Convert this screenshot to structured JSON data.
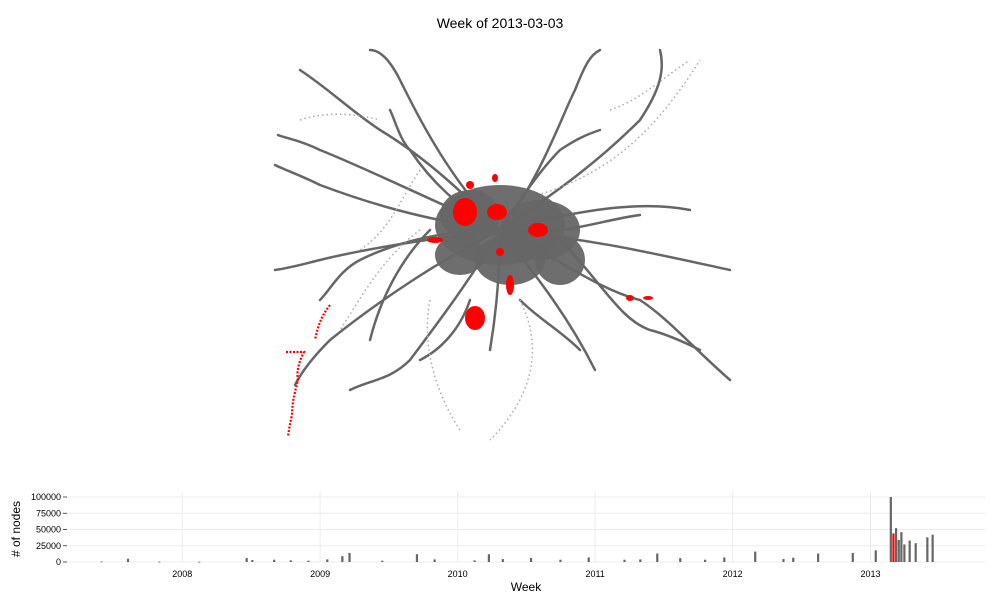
{
  "chart_data": [
    {
      "type": "scatter",
      "title": "Week of 2013-03-03",
      "description_series": [
        {
          "name": "",
          "color": "#666666"
        },
        {
          "name": "",
          "color": "#ff0000"
        }
      ]
    },
    {
      "type": "bar",
      "xlabel": "Week",
      "ylabel": "# of nodes",
      "x_tick_labels": [
        "2008",
        "2009",
        "2010",
        "2011",
        "2012",
        "2013"
      ],
      "y_tick_labels": [
        "0",
        "25000",
        "50000",
        "75000",
        "100000"
      ],
      "ylim": [
        0,
        100000
      ],
      "xlim": [
        "2007-03",
        "2013-11"
      ],
      "bar_color": "#666666",
      "highlight_color": "#ff0000",
      "highlight_week": "2013-03-03",
      "weeks": [
        [
          "2007-06-01",
          800
        ],
        [
          "2007-08-10",
          5000
        ],
        [
          "2007-11-01",
          600
        ],
        [
          "2008-02-15",
          400
        ],
        [
          "2008-06-20",
          6000
        ],
        [
          "2008-07-05",
          3000
        ],
        [
          "2008-09-01",
          3500
        ],
        [
          "2008-10-15",
          2500
        ],
        [
          "2008-12-01",
          2000
        ],
        [
          "2009-01-20",
          4000
        ],
        [
          "2009-03-01",
          9000
        ],
        [
          "2009-03-20",
          14000
        ],
        [
          "2009-06-15",
          2000
        ],
        [
          "2009-09-15",
          12000
        ],
        [
          "2009-11-01",
          4000
        ],
        [
          "2010-02-15",
          2500
        ],
        [
          "2010-03-25",
          12000
        ],
        [
          "2010-05-01",
          4500
        ],
        [
          "2010-07-15",
          6000
        ],
        [
          "2010-10-01",
          3500
        ],
        [
          "2010-12-15",
          7000
        ],
        [
          "2011-03-20",
          3500
        ],
        [
          "2011-05-01",
          4000
        ],
        [
          "2011-06-15",
          13000
        ],
        [
          "2011-08-15",
          6000
        ],
        [
          "2011-10-20",
          3500
        ],
        [
          "2011-12-10",
          7000
        ],
        [
          "2012-03-01",
          16000
        ],
        [
          "2012-05-15",
          4500
        ],
        [
          "2012-06-10",
          6500
        ],
        [
          "2012-08-15",
          13000
        ],
        [
          "2012-11-15",
          14000
        ],
        [
          "2013-01-15",
          18000
        ],
        [
          "2013-02-24",
          100000
        ],
        [
          "2013-03-03",
          44000
        ],
        [
          "2013-03-10",
          52000
        ],
        [
          "2013-03-17",
          34000
        ],
        [
          "2013-03-24",
          46000
        ],
        [
          "2013-04-01",
          27000
        ],
        [
          "2013-04-15",
          33000
        ],
        [
          "2013-05-01",
          29000
        ],
        [
          "2013-06-01",
          38000
        ],
        [
          "2013-06-15",
          42000
        ]
      ]
    }
  ]
}
